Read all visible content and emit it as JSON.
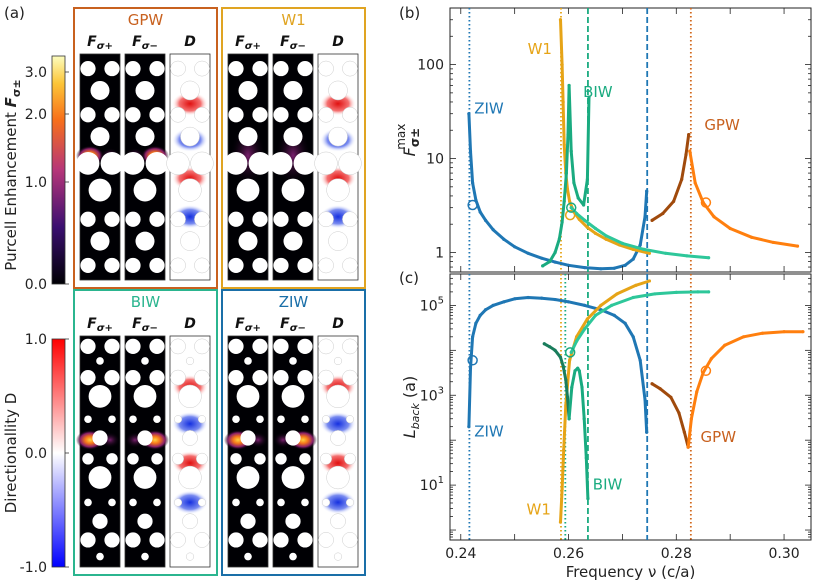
{
  "panel_labels": {
    "a": "(a)",
    "b": "(b)",
    "c": "(c)"
  },
  "colorbars": {
    "purcell": {
      "label": "Purcell Enhancement Fσ±",
      "label_main": "Purcell Enhancement ",
      "label_sym": "F",
      "label_sub": "σ±",
      "ticks": [
        "3.0",
        "2.0",
        "1.0",
        "0.0"
      ]
    },
    "directionality": {
      "label": "Directionallity D",
      "ticks": [
        "1.0",
        "0.0",
        "-1.0"
      ]
    }
  },
  "field_maps": [
    {
      "title": "GPW",
      "color": "#c8611f",
      "columns": [
        "F",
        "F",
        "D"
      ],
      "col_subs": [
        "σ+",
        "σ−",
        ""
      ]
    },
    {
      "title": "W1",
      "color": "#e0a422",
      "columns": [
        "F",
        "F",
        "D"
      ],
      "col_subs": [
        "σ+",
        "σ−",
        ""
      ]
    },
    {
      "title": "BIW",
      "color": "#2bb58f",
      "columns": [
        "F",
        "F",
        "D"
      ],
      "col_subs": [
        "σ+",
        "σ−",
        ""
      ]
    },
    {
      "title": "ZIW",
      "color": "#1a6fa8",
      "columns": [
        "F",
        "F",
        "D"
      ],
      "col_subs": [
        "σ+",
        "σ−",
        ""
      ]
    }
  ],
  "chart_data": [
    {
      "id": "b",
      "type": "line",
      "ylabel": "F σ± max",
      "ylabel_main": "F",
      "ylabel_sub": "σ±",
      "ylabel_sup": "max",
      "yscale": "log",
      "xlim": [
        0.238,
        0.305
      ],
      "ylim": [
        0.62,
        400
      ],
      "yticks": [
        "1",
        "10",
        "100"
      ],
      "series": [
        {
          "name": "ZIW",
          "color": "#1f77b4",
          "x": [
            0.2415,
            0.2418,
            0.2422,
            0.2428,
            0.2436,
            0.2446,
            0.246,
            0.248,
            0.25,
            0.2525,
            0.255,
            0.2575,
            0.26,
            0.263,
            0.266,
            0.2685,
            0.2705,
            0.272,
            0.2733,
            0.2742,
            0.2745
          ],
          "y": [
            30,
            12,
            5.5,
            3.6,
            2.7,
            2.2,
            1.75,
            1.38,
            1.15,
            0.98,
            0.87,
            0.79,
            0.73,
            0.69,
            0.67,
            0.68,
            0.73,
            0.85,
            1.2,
            2.4,
            4.5
          ]
        },
        {
          "name": "W1",
          "color": "#e6a417",
          "x": [
            0.2585,
            0.2588,
            0.259,
            0.2592,
            0.2595,
            0.2598,
            0.2602,
            0.261,
            0.262,
            0.2635,
            0.265,
            0.267,
            0.2695,
            0.272,
            0.275
          ],
          "y": [
            300,
            100,
            40,
            14,
            7,
            4.7,
            3.5,
            2.7,
            2.25,
            1.85,
            1.6,
            1.38,
            1.2,
            1.08,
            0.98
          ]
        },
        {
          "name": "BIW",
          "color": "#1aab80",
          "x": [
            0.2552,
            0.2565,
            0.2575,
            0.2583,
            0.2588,
            0.2592,
            0.2596,
            0.2599,
            0.2601,
            0.2605,
            0.261,
            0.2618,
            0.2628,
            0.2635,
            0.2638
          ],
          "y": [
            0.72,
            0.8,
            1.0,
            1.4,
            2.1,
            3.5,
            7,
            18,
            60,
            12,
            5.5,
            3.8,
            3.2,
            6,
            45
          ]
        },
        {
          "name": "BIW",
          "color": "#2ec79a",
          "x": [
            0.2605,
            0.2615,
            0.263,
            0.265,
            0.267,
            0.27,
            0.274,
            0.278,
            0.282,
            0.286
          ],
          "y": [
            3.0,
            2.6,
            2.2,
            1.8,
            1.5,
            1.25,
            1.08,
            0.98,
            0.92,
            0.88
          ]
        },
        {
          "name": "GPW",
          "color": "#ff7f0e",
          "x": [
            0.2825,
            0.2835,
            0.285,
            0.287,
            0.29,
            0.294,
            0.298,
            0.3025
          ],
          "y": [
            12,
            5.5,
            3.4,
            2.4,
            1.8,
            1.45,
            1.28,
            1.17
          ]
        },
        {
          "name": "GPW",
          "color": "#a04a0c",
          "x": [
            0.2755,
            0.2775,
            0.2795,
            0.281,
            0.2818,
            0.2823
          ],
          "y": [
            2.2,
            2.6,
            3.5,
            6,
            11,
            18
          ]
        }
      ],
      "markers": [
        {
          "x": 0.2422,
          "y": 3.2,
          "color": "#1f77b4"
        },
        {
          "x": 0.2603,
          "y": 2.5,
          "color": "#e6a417"
        },
        {
          "x": 0.2605,
          "y": 3.0,
          "color": "#1aab80"
        },
        {
          "x": 0.2855,
          "y": 3.4,
          "color": "#ff7f0e"
        }
      ],
      "vlines": [
        {
          "x": 0.2416,
          "color": "#1f77b4",
          "style": "dotted"
        },
        {
          "x": 0.2586,
          "color": "#e6a417",
          "style": "dotted"
        },
        {
          "x": 0.2636,
          "color": "#1aab80",
          "style": "dashed"
        },
        {
          "x": 0.2746,
          "color": "#1f77b4",
          "style": "dashed"
        },
        {
          "x": 0.2827,
          "color": "#d2691e",
          "style": "dotted"
        }
      ],
      "annotations": [
        {
          "text": "ZIW",
          "x": 0.2425,
          "y": 30,
          "color": "#1f77b4"
        },
        {
          "text": "W1",
          "x": 0.2524,
          "y": 130,
          "color": "#e6a417"
        },
        {
          "text": "BIW",
          "x": 0.2627,
          "y": 45,
          "color": "#1aab80"
        },
        {
          "text": "GPW",
          "x": 0.2852,
          "y": 20,
          "color": "#c8611f"
        }
      ]
    },
    {
      "id": "c",
      "type": "line",
      "xlabel": "Frequency ν (c/a)",
      "ylabel": "Lback (a)",
      "ylabel_main": "L",
      "ylabel_sub": "back",
      "ylabel_tail": " (a)",
      "yscale": "log",
      "xlim": [
        0.238,
        0.305
      ],
      "ylim": [
        0.6,
        500000
      ],
      "xticks": [
        "0.24",
        "0.26",
        "0.28",
        "0.30"
      ],
      "yticks": [
        "10^1",
        "10^3",
        "10^5"
      ],
      "series": [
        {
          "name": "ZIW",
          "color": "#1f77b4",
          "x": [
            0.2415,
            0.2418,
            0.2422,
            0.2428,
            0.2436,
            0.2446,
            0.246,
            0.248,
            0.25,
            0.2525,
            0.255,
            0.2575,
            0.26,
            0.263,
            0.266,
            0.2685,
            0.2705,
            0.272,
            0.2733,
            0.2742,
            0.2745
          ],
          "y": [
            200,
            4000,
            20000,
            40000,
            60000,
            80000,
            100000,
            120000,
            140000,
            150000,
            145000,
            135000,
            120000,
            100000,
            80000,
            60000,
            40000,
            20000,
            6000,
            800,
            150
          ]
        },
        {
          "name": "W1",
          "color": "#e6a417",
          "x": [
            0.2585,
            0.2588,
            0.2591,
            0.2595,
            0.2602,
            0.2615,
            0.2635,
            0.266,
            0.269,
            0.2725,
            0.275
          ],
          "y": [
            1.5,
            8,
            60,
            600,
            6000,
            20000,
            50000,
            100000,
            180000,
            280000,
            350000
          ]
        },
        {
          "name": "BIW",
          "color": "#1a7d5c",
          "x": [
            0.2555,
            0.2565,
            0.2575,
            0.2585,
            0.259,
            0.2595,
            0.2598,
            0.2601
          ],
          "y": [
            14000,
            12000,
            10000,
            7000,
            4500,
            2200,
            900,
            300
          ]
        },
        {
          "name": "BIW",
          "color": "#1aab80",
          "x": [
            0.2601,
            0.2606,
            0.2612,
            0.2617,
            0.262,
            0.2625,
            0.2629,
            0.2633,
            0.2636
          ],
          "y": [
            300,
            1500,
            3500,
            4000,
            3500,
            1500,
            300,
            40,
            5
          ]
        },
        {
          "name": "BIW",
          "color": "#2ec79a",
          "x": [
            0.2605,
            0.2615,
            0.263,
            0.265,
            0.268,
            0.272,
            0.276,
            0.28,
            0.284,
            0.286
          ],
          "y": [
            9000,
            16000,
            30000,
            60000,
            100000,
            150000,
            180000,
            195000,
            200000,
            200000
          ]
        },
        {
          "name": "GPW",
          "color": "#a04a0c",
          "x": [
            0.2755,
            0.277,
            0.279,
            0.2805,
            0.2815,
            0.2822
          ],
          "y": [
            1800,
            1400,
            900,
            400,
            150,
            70
          ]
        },
        {
          "name": "GPW",
          "color": "#ff7f0e",
          "x": [
            0.2822,
            0.2828,
            0.2838,
            0.285,
            0.2865,
            0.289,
            0.2925,
            0.296,
            0.3,
            0.3035
          ],
          "y": [
            70,
            300,
            1200,
            3200,
            6500,
            13000,
            20000,
            24000,
            26000,
            26000
          ]
        }
      ],
      "markers": [
        {
          "x": 0.2422,
          "y": 6000,
          "color": "#1f77b4"
        },
        {
          "x": 0.2603,
          "y": 9000,
          "color": "#1aab80"
        },
        {
          "x": 0.2855,
          "y": 3500,
          "color": "#ff7f0e"
        }
      ],
      "vlines": [
        {
          "x": 0.2416,
          "color": "#1f77b4",
          "style": "dotted"
        },
        {
          "x": 0.2586,
          "color": "#e6a417",
          "style": "dotted"
        },
        {
          "x": 0.2594,
          "color": "#1aab80",
          "style": "dotted"
        },
        {
          "x": 0.2636,
          "color": "#1aab80",
          "style": "dashed"
        },
        {
          "x": 0.2746,
          "color": "#1f77b4",
          "style": "dashed"
        },
        {
          "x": 0.2827,
          "color": "#d2691e",
          "style": "dotted"
        }
      ],
      "annotations": [
        {
          "text": "ZIW",
          "x": 0.2425,
          "y": 120,
          "color": "#1f77b4"
        },
        {
          "text": "W1",
          "x": 0.2522,
          "y": 2.2,
          "color": "#e6a417"
        },
        {
          "text": "BIW",
          "x": 0.2645,
          "y": 8,
          "color": "#1aab80"
        },
        {
          "text": "GPW",
          "x": 0.2845,
          "y": 90,
          "color": "#c8611f"
        }
      ]
    }
  ]
}
